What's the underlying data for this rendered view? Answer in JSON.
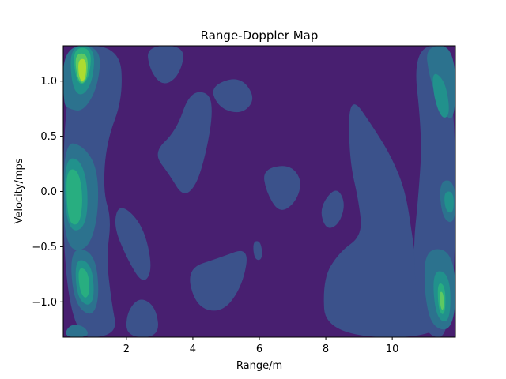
{
  "chart_data": {
    "type": "contour",
    "title": "Range-Doppler Map",
    "xlabel": "Range/m",
    "ylabel": "Velocity/mps",
    "xlim": [
      0.1,
      11.9
    ],
    "ylim": [
      -1.32,
      1.32
    ],
    "xticks": [
      2,
      4,
      6,
      8,
      10
    ],
    "xtick_labels": [
      "2",
      "4",
      "6",
      "8",
      "10"
    ],
    "yticks": [
      -1.0,
      -0.5,
      0.0,
      0.5,
      1.0
    ],
    "ytick_labels": [
      "−1.0",
      "−0.5",
      "0.0",
      "0.5",
      "1.0"
    ],
    "colormap": "viridis",
    "level_colors": [
      "#481f70",
      "#3b528b",
      "#2c728e",
      "#21918c",
      "#28ae80",
      "#5ec962",
      "#addc30",
      "#fde725"
    ],
    "grid": false,
    "legend": "none",
    "regions": [
      {
        "name": "background",
        "level": 0,
        "points": [
          [
            0.1,
            -1.32
          ],
          [
            11.9,
            -1.32
          ],
          [
            11.9,
            1.32
          ],
          [
            0.1,
            1.32
          ]
        ]
      },
      {
        "name": "left-band",
        "level": 1,
        "points": [
          [
            0.1,
            1.32
          ],
          [
            1.8,
            1.32
          ],
          [
            1.9,
            0.85
          ],
          [
            1.4,
            0.45
          ],
          [
            1.3,
            0.0
          ],
          [
            1.55,
            -0.25
          ],
          [
            1.4,
            -0.6
          ],
          [
            1.55,
            -1.0
          ],
          [
            1.75,
            -1.32
          ],
          [
            0.1,
            -1.32
          ]
        ]
      },
      {
        "name": "left-top-ring",
        "level": 2,
        "points": [
          [
            0.1,
            1.32
          ],
          [
            1.25,
            1.32
          ],
          [
            1.15,
            0.95
          ],
          [
            0.7,
            0.72
          ],
          [
            0.25,
            0.75
          ],
          [
            0.1,
            0.8
          ]
        ]
      },
      {
        "name": "left-top-inner",
        "level": 3,
        "points": [
          [
            0.3,
            1.32
          ],
          [
            1.05,
            1.32
          ],
          [
            1.0,
            1.0
          ],
          [
            0.65,
            0.85
          ],
          [
            0.35,
            0.95
          ]
        ]
      },
      {
        "name": "left-top-core",
        "level": 4,
        "points": [
          [
            0.4,
            1.3
          ],
          [
            0.95,
            1.3
          ],
          [
            0.9,
            1.05
          ],
          [
            0.65,
            0.95
          ],
          [
            0.45,
            1.05
          ]
        ]
      },
      {
        "name": "left-top-peak-outer",
        "level": 5,
        "points": [
          [
            0.45,
            1.25
          ],
          [
            0.85,
            1.25
          ],
          [
            0.82,
            1.02
          ],
          [
            0.65,
            0.97
          ],
          [
            0.5,
            1.05
          ]
        ]
      },
      {
        "name": "left-top-peak",
        "level": 6,
        "points": [
          [
            0.55,
            1.2
          ],
          [
            0.8,
            1.2
          ],
          [
            0.78,
            1.03
          ],
          [
            0.66,
            0.99
          ],
          [
            0.56,
            1.05
          ]
        ]
      },
      {
        "name": "left-mid-ring",
        "level": 2,
        "points": [
          [
            0.1,
            0.45
          ],
          [
            0.7,
            0.42
          ],
          [
            1.15,
            0.2
          ],
          [
            1.15,
            -0.25
          ],
          [
            0.8,
            -0.55
          ],
          [
            0.1,
            -0.5
          ]
        ]
      },
      {
        "name": "left-mid-inner",
        "level": 3,
        "points": [
          [
            0.15,
            0.3
          ],
          [
            0.6,
            0.3
          ],
          [
            0.85,
            0.05
          ],
          [
            0.8,
            -0.3
          ],
          [
            0.4,
            -0.38
          ],
          [
            0.15,
            -0.2
          ]
        ]
      },
      {
        "name": "left-mid-core",
        "level": 4,
        "points": [
          [
            0.2,
            0.2
          ],
          [
            0.55,
            0.2
          ],
          [
            0.7,
            -0.05
          ],
          [
            0.6,
            -0.3
          ],
          [
            0.3,
            -0.3
          ],
          [
            0.2,
            -0.1
          ]
        ]
      },
      {
        "name": "left-low-ring",
        "level": 2,
        "points": [
          [
            0.3,
            -0.5
          ],
          [
            1.05,
            -0.55
          ],
          [
            1.2,
            -0.95
          ],
          [
            0.95,
            -1.15
          ],
          [
            0.4,
            -1.0
          ]
        ]
      },
      {
        "name": "left-low-inner",
        "level": 3,
        "points": [
          [
            0.45,
            -0.6
          ],
          [
            0.95,
            -0.65
          ],
          [
            1.05,
            -0.95
          ],
          [
            0.85,
            -1.05
          ],
          [
            0.5,
            -0.95
          ]
        ]
      },
      {
        "name": "left-low-core",
        "level": 4,
        "points": [
          [
            0.55,
            -0.68
          ],
          [
            0.85,
            -0.72
          ],
          [
            0.9,
            -0.92
          ],
          [
            0.75,
            -0.98
          ],
          [
            0.58,
            -0.88
          ]
        ]
      },
      {
        "name": "bottom-left-patch",
        "level": 2,
        "points": [
          [
            0.1,
            -1.32
          ],
          [
            0.9,
            -1.32
          ],
          [
            0.75,
            -1.22
          ],
          [
            0.3,
            -1.2
          ]
        ]
      },
      {
        "name": "blob-3-4",
        "level": 1,
        "points": [
          [
            2.8,
            0.35
          ],
          [
            3.5,
            0.55
          ],
          [
            3.9,
            0.9
          ],
          [
            4.5,
            0.9
          ],
          [
            4.6,
            0.7
          ],
          [
            4.4,
            0.35
          ],
          [
            4.1,
            0.05
          ],
          [
            3.7,
            -0.05
          ],
          [
            3.3,
            0.15
          ]
        ]
      },
      {
        "name": "blob-top-3",
        "level": 1,
        "points": [
          [
            2.6,
            1.32
          ],
          [
            3.8,
            1.32
          ],
          [
            3.6,
            1.05
          ],
          [
            3.1,
            0.95
          ],
          [
            2.7,
            1.1
          ]
        ]
      },
      {
        "name": "blob-top-5-6",
        "level": 1,
        "points": [
          [
            4.5,
            0.95
          ],
          [
            5.4,
            1.05
          ],
          [
            5.9,
            0.85
          ],
          [
            5.5,
            0.7
          ],
          [
            4.8,
            0.75
          ]
        ]
      },
      {
        "name": "blob-upper-mid-0",
        "level": 1,
        "points": [
          [
            6.1,
            0.2
          ],
          [
            6.9,
            0.25
          ],
          [
            7.3,
            0.1
          ],
          [
            7.1,
            -0.1
          ],
          [
            6.6,
            -0.2
          ],
          [
            6.2,
            0.0
          ]
        ]
      },
      {
        "name": "blob-mid-left-low",
        "level": 1,
        "points": [
          [
            1.8,
            -0.1
          ],
          [
            2.5,
            -0.3
          ],
          [
            2.8,
            -0.7
          ],
          [
            2.5,
            -0.85
          ],
          [
            2.0,
            -0.6
          ],
          [
            1.6,
            -0.3
          ]
        ]
      },
      {
        "name": "blob-5-lower",
        "level": 1,
        "points": [
          [
            3.8,
            -0.7
          ],
          [
            4.8,
            -0.6
          ],
          [
            5.7,
            -0.5
          ],
          [
            5.5,
            -0.85
          ],
          [
            4.9,
            -1.1
          ],
          [
            4.1,
            -1.05
          ]
        ]
      },
      {
        "name": "blob-bottom-2-3",
        "level": 1,
        "points": [
          [
            2.0,
            -1.32
          ],
          [
            3.0,
            -1.32
          ],
          [
            2.9,
            -1.05
          ],
          [
            2.4,
            -0.95
          ],
          [
            2.0,
            -1.1
          ]
        ]
      },
      {
        "name": "small-6",
        "level": 1,
        "points": [
          [
            5.8,
            -0.45
          ],
          [
            6.05,
            -0.45
          ],
          [
            6.1,
            -0.62
          ],
          [
            5.85,
            -0.62
          ]
        ]
      },
      {
        "name": "blob-8",
        "level": 1,
        "points": [
          [
            7.8,
            -0.15
          ],
          [
            8.3,
            0.05
          ],
          [
            8.6,
            -0.1
          ],
          [
            8.4,
            -0.3
          ],
          [
            8.0,
            -0.35
          ]
        ]
      },
      {
        "name": "right-mid-structure",
        "level": 1,
        "points": [
          [
            8.7,
            0.9
          ],
          [
            9.5,
            0.55
          ],
          [
            10.0,
            0.3
          ],
          [
            10.4,
            0.0
          ],
          [
            10.6,
            -0.4
          ],
          [
            10.8,
            -0.8
          ],
          [
            11.9,
            -1.32
          ],
          [
            8.0,
            -1.32
          ],
          [
            7.9,
            -0.8
          ],
          [
            8.4,
            -0.55
          ],
          [
            9.1,
            -0.4
          ],
          [
            9.0,
            -0.1
          ],
          [
            8.7,
            0.3
          ]
        ]
      },
      {
        "name": "right-band",
        "level": 1,
        "points": [
          [
            10.6,
            1.32
          ],
          [
            11.9,
            1.32
          ],
          [
            11.9,
            -1.32
          ],
          [
            10.9,
            -1.32
          ],
          [
            10.6,
            -0.6
          ],
          [
            10.8,
            0.0
          ],
          [
            10.9,
            0.5
          ]
        ]
      },
      {
        "name": "right-top-ring",
        "level": 2,
        "points": [
          [
            11.0,
            1.32
          ],
          [
            11.9,
            1.32
          ],
          [
            11.9,
            0.6
          ],
          [
            11.45,
            0.75
          ],
          [
            11.1,
            1.05
          ]
        ]
      },
      {
        "name": "right-top-inner",
        "level": 3,
        "points": [
          [
            11.2,
            1.1
          ],
          [
            11.6,
            1.0
          ],
          [
            11.75,
            0.7
          ],
          [
            11.5,
            0.65
          ],
          [
            11.25,
            0.85
          ]
        ]
      },
      {
        "name": "right-mid-ring",
        "level": 2,
        "points": [
          [
            11.4,
            0.1
          ],
          [
            11.9,
            0.1
          ],
          [
            11.9,
            -0.3
          ],
          [
            11.5,
            -0.25
          ]
        ]
      },
      {
        "name": "right-mid-inner",
        "level": 3,
        "points": [
          [
            11.55,
            0.0
          ],
          [
            11.85,
            0.0
          ],
          [
            11.85,
            -0.2
          ],
          [
            11.6,
            -0.18
          ]
        ]
      },
      {
        "name": "right-low-ring",
        "level": 2,
        "points": [
          [
            11.0,
            -0.5
          ],
          [
            11.9,
            -0.55
          ],
          [
            11.9,
            -1.25
          ],
          [
            11.2,
            -1.25
          ],
          [
            10.95,
            -0.9
          ]
        ]
      },
      {
        "name": "right-low-inner",
        "level": 3,
        "points": [
          [
            11.2,
            -0.7
          ],
          [
            11.75,
            -0.75
          ],
          [
            11.75,
            -1.2
          ],
          [
            11.3,
            -1.15
          ]
        ]
      },
      {
        "name": "right-low-core",
        "level": 4,
        "points": [
          [
            11.35,
            -0.82
          ],
          [
            11.6,
            -0.85
          ],
          [
            11.6,
            -1.12
          ],
          [
            11.4,
            -1.1
          ]
        ]
      },
      {
        "name": "right-low-peak",
        "level": 5,
        "points": [
          [
            11.42,
            -0.9
          ],
          [
            11.55,
            -0.92
          ],
          [
            11.55,
            -1.08
          ],
          [
            11.45,
            -1.06
          ]
        ]
      }
    ]
  }
}
